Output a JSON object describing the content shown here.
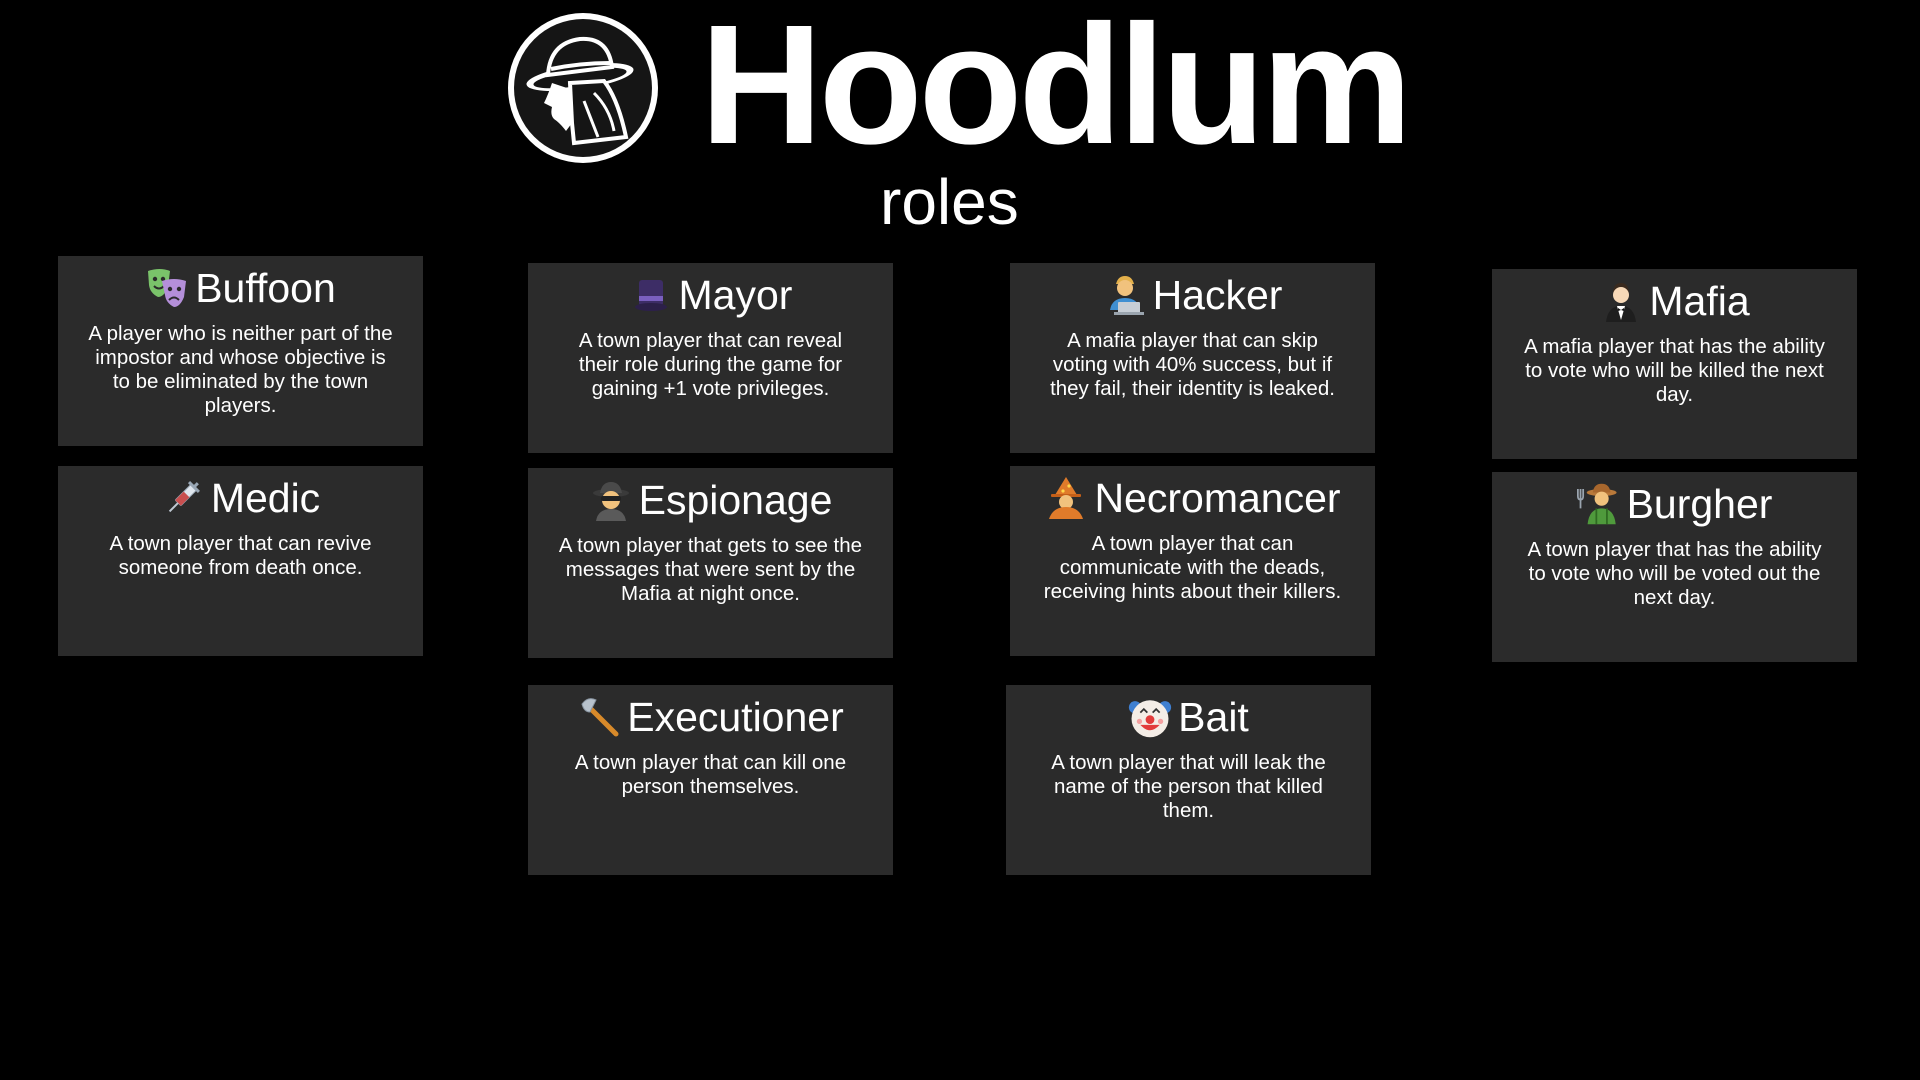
{
  "header": {
    "title": "Hoodlum",
    "subtitle": "roles",
    "logo_icon": "hooded-detective-icon"
  },
  "colors": {
    "background": "#000000",
    "card": "#2b2b2b",
    "text": "#ffffff"
  },
  "roles": [
    {
      "name": "Buffoon",
      "icon": "theater-masks-icon",
      "description": "A player who is neither part of the impostor and whose objective is to be eliminated by the town players."
    },
    {
      "name": "Medic",
      "icon": "syringe-icon",
      "description": "A town player that can revive someone from death once."
    },
    {
      "name": "Mayor",
      "icon": "top-hat-icon",
      "description": "A town player that can reveal their role during the game for gaining +1 vote privileges."
    },
    {
      "name": "Espionage",
      "icon": "spy-icon",
      "description": "A town player that gets to see the messages that were sent by the Mafia at night once."
    },
    {
      "name": "Executioner",
      "icon": "axe-icon",
      "description": "A town player that can kill one person themselves."
    },
    {
      "name": "Hacker",
      "icon": "technologist-icon",
      "description": "A mafia player that can skip voting with 40% success, but if they fail, their identity is leaked."
    },
    {
      "name": "Necromancer",
      "icon": "mage-icon",
      "description": "A town player that can communicate with the deads, receiving hints about their killers."
    },
    {
      "name": "Bait",
      "icon": "clown-face-icon",
      "description": "A town player that will leak the name of the person that killed them."
    },
    {
      "name": "Mafia",
      "icon": "man-in-tuxedo-icon",
      "description": "A mafia player that has the ability to vote who will be killed the next day."
    },
    {
      "name": "Burgher",
      "icon": "farmer-icon",
      "description": "A town player that has the ability to vote who will be voted out the next day."
    }
  ]
}
